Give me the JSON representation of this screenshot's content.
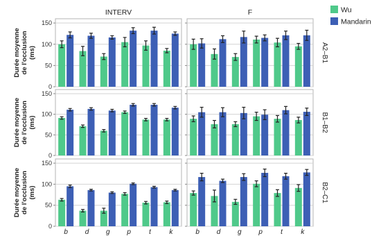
{
  "chart_data": {
    "type": "bar",
    "ylabel_lines": [
      "Durée moyenne",
      "de l'occlusion",
      "(ms)"
    ],
    "columns": [
      "INTERV",
      "F"
    ],
    "rows": [
      "A2–B1",
      "B1–B2",
      "B2–C1"
    ],
    "categories": [
      "b",
      "d",
      "g",
      "p",
      "t",
      "k"
    ],
    "y_ticks": [
      0,
      50,
      100,
      150
    ],
    "ylim": [
      0,
      160
    ],
    "legend": {
      "position": "top-right",
      "items": [
        "Wu",
        "Mandarin"
      ]
    },
    "colors": {
      "Wu": "#4fc98a",
      "Mandarin": "#3d5fb5",
      "grid": "#d3d3d3",
      "error": "#222222"
    },
    "grid": true,
    "panels": [
      {
        "row": "A2–B1",
        "col": "INTERV",
        "series": [
          {
            "name": "Wu",
            "values": [
              100,
              84,
              71,
              105,
              97,
              85
            ],
            "err": [
              8,
              11,
              7,
              11,
              11,
              5
            ]
          },
          {
            "name": "Mandarin",
            "values": [
              122,
              120,
              116,
              132,
              132,
              125
            ],
            "err": [
              7,
              6,
              4,
              7,
              8,
              4
            ]
          }
        ]
      },
      {
        "row": "A2–B1",
        "col": "F",
        "series": [
          {
            "name": "Wu",
            "values": [
              100,
              77,
              70,
              111,
              104,
              95
            ],
            "err": [
              12,
              12,
              8,
              8,
              10,
              7
            ]
          },
          {
            "name": "Mandarin",
            "values": [
              102,
              112,
              117,
              115,
              121,
              121
            ],
            "err": [
              11,
              8,
              14,
              7,
              10,
              12
            ]
          }
        ]
      },
      {
        "row": "B1–B2",
        "col": "INTERV",
        "series": [
          {
            "name": "Wu",
            "values": [
              91,
              71,
              60,
              105,
              87,
              87
            ],
            "err": [
              3,
              3,
              3,
              3,
              3,
              3
            ]
          },
          {
            "name": "Mandarin",
            "values": [
              111,
              113,
              109,
              123,
              123,
              116
            ],
            "err": [
              3,
              3,
              3,
              3,
              3,
              3
            ]
          }
        ]
      },
      {
        "row": "B1–B2",
        "col": "F",
        "series": [
          {
            "name": "Wu",
            "values": [
              89,
              76,
              76,
              95,
              89,
              86
            ],
            "err": [
              7,
              9,
              6,
              10,
              8,
              7
            ]
          },
          {
            "name": "Mandarin",
            "values": [
              105,
              105,
              103,
              99,
              110,
              106
            ],
            "err": [
              12,
              11,
              14,
              12,
              9,
              9
            ]
          }
        ]
      },
      {
        "row": "B2–C1",
        "col": "INTERV",
        "series": [
          {
            "name": "Wu",
            "values": [
              63,
              37,
              37,
              77,
              56,
              57
            ],
            "err": [
              3,
              3,
              6,
              3,
              3,
              3
            ]
          },
          {
            "name": "Mandarin",
            "values": [
              95,
              86,
              80,
              101,
              93,
              86
            ],
            "err": [
              3,
              2,
              2,
              2,
              2,
              2
            ]
          }
        ]
      },
      {
        "row": "B2–C1",
        "col": "F",
        "series": [
          {
            "name": "Wu",
            "values": [
              79,
              72,
              58,
              101,
              79,
              91
            ],
            "err": [
              5,
              14,
              6,
              7,
              8,
              8
            ]
          },
          {
            "name": "Mandarin",
            "values": [
              117,
              108,
              117,
              127,
              119,
              128
            ],
            "err": [
              9,
              4,
              8,
              9,
              7,
              7
            ]
          }
        ]
      }
    ]
  }
}
